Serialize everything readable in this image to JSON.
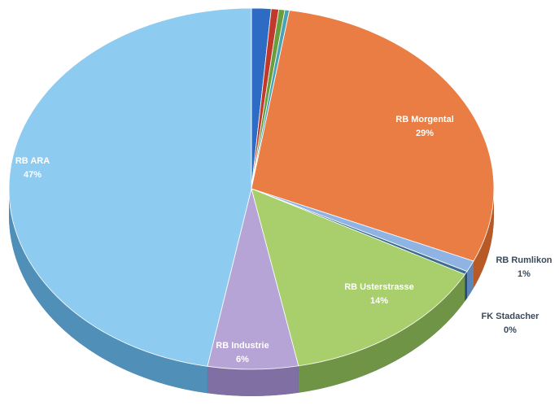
{
  "chart_data": {
    "type": "pie",
    "style": "3d-tilted",
    "start": "12 o'clock",
    "direction": "clockwise",
    "legend": "none",
    "slices": [
      {
        "label": "",
        "value": 1.3,
        "color": "#2e6bc4",
        "side_color": "#1d4a8c",
        "show_label": false
      },
      {
        "label": "",
        "value": 0.5,
        "color": "#c0392b",
        "side_color": "#8e2a1f",
        "show_label": false
      },
      {
        "label": "",
        "value": 0.4,
        "color": "#6a9e3c",
        "side_color": "#4a7229",
        "show_label": false
      },
      {
        "label": "",
        "value": 0.3,
        "color": "#4aa3b5",
        "side_color": "#2f7484",
        "show_label": false
      },
      {
        "label": "RB Morgental",
        "value": 29,
        "percent_text": "29%",
        "color": "#e97d43",
        "side_color": "#b85a26",
        "text_color": "#ffffff",
        "show_label": true
      },
      {
        "label": "RB Rumlikon",
        "value": 1,
        "percent_text": "1%",
        "color": "#8fb4e3",
        "side_color": "#5f86b8",
        "text_color": "#3b4a5a",
        "show_label": true
      },
      {
        "label": "FK Stadacher",
        "value": 0.3,
        "percent_text": "0%",
        "color": "#3d6f8e",
        "side_color": "#274c63",
        "text_color": "#3b4a5a",
        "show_label": true
      },
      {
        "label": "RB Usterstrasse",
        "value": 14,
        "percent_text": "14%",
        "color": "#a8cf6b",
        "side_color": "#6f9446",
        "text_color": "#ffffff",
        "show_label": true
      },
      {
        "label": "RB Industrie",
        "value": 6,
        "percent_text": "6%",
        "color": "#b6a4d6",
        "side_color": "#7f6fa3",
        "text_color": "#ffffff",
        "show_label": true
      },
      {
        "label": "RB ARA",
        "value": 47,
        "percent_text": "47%",
        "color": "#8ecbf0",
        "side_color": "#4f8fb8",
        "text_color": "#ffffff",
        "show_label": true
      }
    ]
  }
}
